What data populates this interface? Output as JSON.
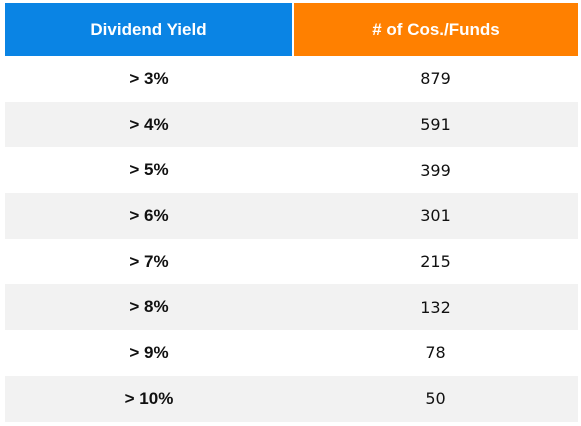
{
  "table": {
    "headers": {
      "yield": "Dividend Yield",
      "count": "# of Cos./Funds"
    },
    "colors": {
      "yield_header": "#0a84e4",
      "count_header": "#ff8000",
      "stripe": "#f2f2f2"
    },
    "rows": [
      {
        "yield": "> 3%",
        "count": "879"
      },
      {
        "yield": "> 4%",
        "count": "591"
      },
      {
        "yield": "> 5%",
        "count": "399"
      },
      {
        "yield": "> 6%",
        "count": "301"
      },
      {
        "yield": "> 7%",
        "count": "215"
      },
      {
        "yield": "> 8%",
        "count": "132"
      },
      {
        "yield": "> 9%",
        "count": "78"
      },
      {
        "yield": "> 10%",
        "count": "50"
      }
    ]
  }
}
